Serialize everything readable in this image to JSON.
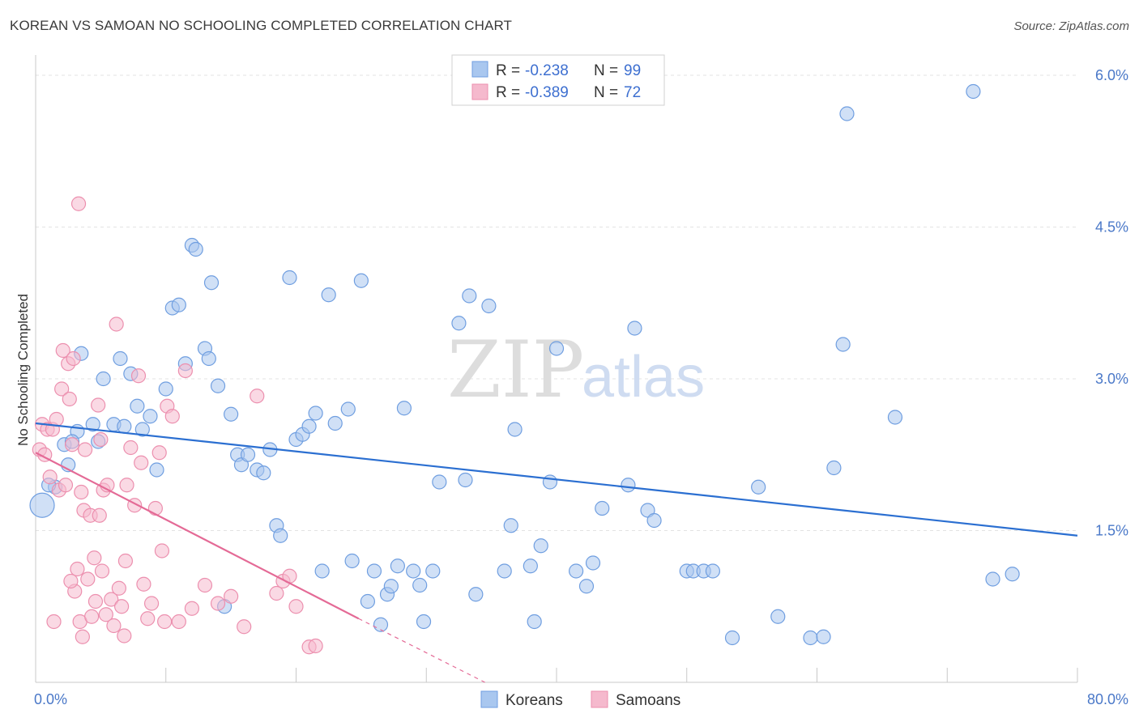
{
  "title": "KOREAN VS SAMOAN NO SCHOOLING COMPLETED CORRELATION CHART",
  "source": "Source: ZipAtlas.com",
  "watermark": {
    "zip": "ZIP",
    "atlas": "atlas"
  },
  "chart_data": {
    "type": "scatter",
    "ylabel": "No Schooling Completed",
    "xlim": [
      0,
      80
    ],
    "ylim": [
      0,
      6.2
    ],
    "x_tick_labels": {
      "min": "0.0%",
      "max": "80.0%"
    },
    "y_ticks": [
      {
        "value": 1.5,
        "label": "1.5%"
      },
      {
        "value": 3.0,
        "label": "3.0%"
      },
      {
        "value": 4.5,
        "label": "4.5%"
      },
      {
        "value": 6.0,
        "label": "6.0%"
      }
    ],
    "grid": true,
    "legend_placement": "top-center",
    "series": [
      {
        "name": "Koreans",
        "color": "#a9c7ef",
        "stroke": "#6f9ee0",
        "line_color": "#2b6fd1",
        "R_label": "R =",
        "R": "-0.238",
        "N_label": "N =",
        "N": "99",
        "trend": {
          "x0": 0,
          "y0": 2.56,
          "x1": 80,
          "y1": 1.45
        },
        "points": [
          [
            0.5,
            1.75
          ],
          [
            1.5,
            1.93
          ],
          [
            2.2,
            2.35
          ],
          [
            2.5,
            2.15
          ],
          [
            3.2,
            2.48
          ],
          [
            3.5,
            3.25
          ],
          [
            4.4,
            2.55
          ],
          [
            4.8,
            2.38
          ],
          [
            5.2,
            3.0
          ],
          [
            6.0,
            2.55
          ],
          [
            6.5,
            3.2
          ],
          [
            6.8,
            2.53
          ],
          [
            7.3,
            3.05
          ],
          [
            7.8,
            2.73
          ],
          [
            8.2,
            2.5
          ],
          [
            8.8,
            2.63
          ],
          [
            9.3,
            2.1
          ],
          [
            10.0,
            2.9
          ],
          [
            10.5,
            3.7
          ],
          [
            11.0,
            3.73
          ],
          [
            11.5,
            3.15
          ],
          [
            12.0,
            4.32
          ],
          [
            12.3,
            4.28
          ],
          [
            13.0,
            3.3
          ],
          [
            13.3,
            3.2
          ],
          [
            13.5,
            3.95
          ],
          [
            14.0,
            2.93
          ],
          [
            14.5,
            0.75
          ],
          [
            15.0,
            2.65
          ],
          [
            15.5,
            2.25
          ],
          [
            15.8,
            2.15
          ],
          [
            16.3,
            2.25
          ],
          [
            17.0,
            2.1
          ],
          [
            17.5,
            2.07
          ],
          [
            18.0,
            2.3
          ],
          [
            18.5,
            1.55
          ],
          [
            18.8,
            1.45
          ],
          [
            19.5,
            4.0
          ],
          [
            20.0,
            2.4
          ],
          [
            20.5,
            2.45
          ],
          [
            21.0,
            2.53
          ],
          [
            21.5,
            2.66
          ],
          [
            22.0,
            1.1
          ],
          [
            22.5,
            3.83
          ],
          [
            23.0,
            2.56
          ],
          [
            24.0,
            2.7
          ],
          [
            24.3,
            1.2
          ],
          [
            25.0,
            3.97
          ],
          [
            25.5,
            0.8
          ],
          [
            26.0,
            1.1
          ],
          [
            26.5,
            0.57
          ],
          [
            27.0,
            0.87
          ],
          [
            27.3,
            0.95
          ],
          [
            27.8,
            1.15
          ],
          [
            28.3,
            2.71
          ],
          [
            29.0,
            1.1
          ],
          [
            29.5,
            0.96
          ],
          [
            29.8,
            0.6
          ],
          [
            30.5,
            1.1
          ],
          [
            31.0,
            1.98
          ],
          [
            32.5,
            3.55
          ],
          [
            33.0,
            2.0
          ],
          [
            33.3,
            3.82
          ],
          [
            33.8,
            0.87
          ],
          [
            34.8,
            3.72
          ],
          [
            36.0,
            1.1
          ],
          [
            36.5,
            1.55
          ],
          [
            36.8,
            2.5
          ],
          [
            38.0,
            1.15
          ],
          [
            38.3,
            0.6
          ],
          [
            38.8,
            1.35
          ],
          [
            39.5,
            1.98
          ],
          [
            40.0,
            3.3
          ],
          [
            41.5,
            1.1
          ],
          [
            42.3,
            0.95
          ],
          [
            42.8,
            1.18
          ],
          [
            43.5,
            1.72
          ],
          [
            45.5,
            1.95
          ],
          [
            46.0,
            3.5
          ],
          [
            47.0,
            1.7
          ],
          [
            47.5,
            1.6
          ],
          [
            50.0,
            1.1
          ],
          [
            50.5,
            1.1
          ],
          [
            51.3,
            1.1
          ],
          [
            52.0,
            1.1
          ],
          [
            53.5,
            0.44
          ],
          [
            55.5,
            1.93
          ],
          [
            57.0,
            0.65
          ],
          [
            59.5,
            0.44
          ],
          [
            60.5,
            0.45
          ],
          [
            61.3,
            2.12
          ],
          [
            62.0,
            3.34
          ],
          [
            62.3,
            5.62
          ],
          [
            66.0,
            2.62
          ],
          [
            72.0,
            5.84
          ],
          [
            73.5,
            1.02
          ],
          [
            75.0,
            1.07
          ],
          [
            1.0,
            1.95
          ],
          [
            2.8,
            2.38
          ]
        ]
      },
      {
        "name": "Samoans",
        "color": "#f5b9cd",
        "stroke": "#ec8fae",
        "line_color": "#e46a96",
        "R_label": "R =",
        "R": "-0.389",
        "N_label": "N =",
        "N": "72",
        "trend": {
          "x0": 0,
          "y0": 2.27,
          "x1": 24.8,
          "y1": 0.63
        },
        "trend_dash": {
          "x0": 24.8,
          "y0": 0.63,
          "x1": 34.5,
          "y1": 0.0
        },
        "points": [
          [
            0.3,
            2.3
          ],
          [
            0.5,
            2.55
          ],
          [
            0.7,
            2.25
          ],
          [
            0.9,
            2.5
          ],
          [
            1.1,
            2.03
          ],
          [
            1.3,
            2.5
          ],
          [
            1.6,
            2.6
          ],
          [
            1.8,
            1.9
          ],
          [
            2.0,
            2.9
          ],
          [
            2.1,
            3.28
          ],
          [
            2.3,
            1.95
          ],
          [
            2.5,
            3.15
          ],
          [
            2.6,
            2.8
          ],
          [
            2.8,
            2.35
          ],
          [
            2.9,
            3.2
          ],
          [
            3.0,
            0.9
          ],
          [
            3.2,
            1.12
          ],
          [
            3.4,
            0.6
          ],
          [
            3.5,
            1.88
          ],
          [
            3.6,
            0.45
          ],
          [
            3.7,
            1.7
          ],
          [
            3.8,
            2.3
          ],
          [
            4.0,
            1.02
          ],
          [
            4.2,
            1.65
          ],
          [
            4.3,
            0.65
          ],
          [
            4.5,
            1.23
          ],
          [
            4.6,
            0.8
          ],
          [
            4.8,
            2.74
          ],
          [
            4.9,
            1.65
          ],
          [
            5.0,
            2.4
          ],
          [
            5.2,
            1.9
          ],
          [
            5.4,
            0.67
          ],
          [
            5.5,
            1.95
          ],
          [
            5.8,
            0.82
          ],
          [
            6.0,
            0.56
          ],
          [
            6.2,
            3.54
          ],
          [
            6.4,
            0.93
          ],
          [
            6.6,
            0.75
          ],
          [
            6.8,
            0.46
          ],
          [
            7.0,
            1.95
          ],
          [
            7.3,
            2.32
          ],
          [
            7.6,
            1.75
          ],
          [
            7.9,
            3.03
          ],
          [
            8.1,
            2.17
          ],
          [
            8.3,
            0.97
          ],
          [
            8.6,
            0.63
          ],
          [
            8.9,
            0.78
          ],
          [
            9.2,
            1.72
          ],
          [
            9.5,
            2.27
          ],
          [
            9.9,
            0.6
          ],
          [
            10.1,
            2.73
          ],
          [
            10.5,
            2.63
          ],
          [
            11.0,
            0.6
          ],
          [
            11.5,
            3.08
          ],
          [
            12.0,
            0.73
          ],
          [
            13.0,
            0.96
          ],
          [
            14.0,
            0.78
          ],
          [
            15.0,
            0.85
          ],
          [
            16.0,
            0.55
          ],
          [
            17.0,
            2.83
          ],
          [
            18.5,
            0.88
          ],
          [
            19.0,
            1.0
          ],
          [
            19.5,
            1.05
          ],
          [
            20.0,
            0.75
          ],
          [
            21.0,
            0.35
          ],
          [
            21.5,
            0.36
          ],
          [
            1.4,
            0.6
          ],
          [
            2.7,
            1.0
          ],
          [
            5.1,
            1.1
          ],
          [
            6.9,
            1.2
          ],
          [
            9.7,
            1.3
          ],
          [
            3.3,
            4.73
          ]
        ]
      }
    ]
  }
}
